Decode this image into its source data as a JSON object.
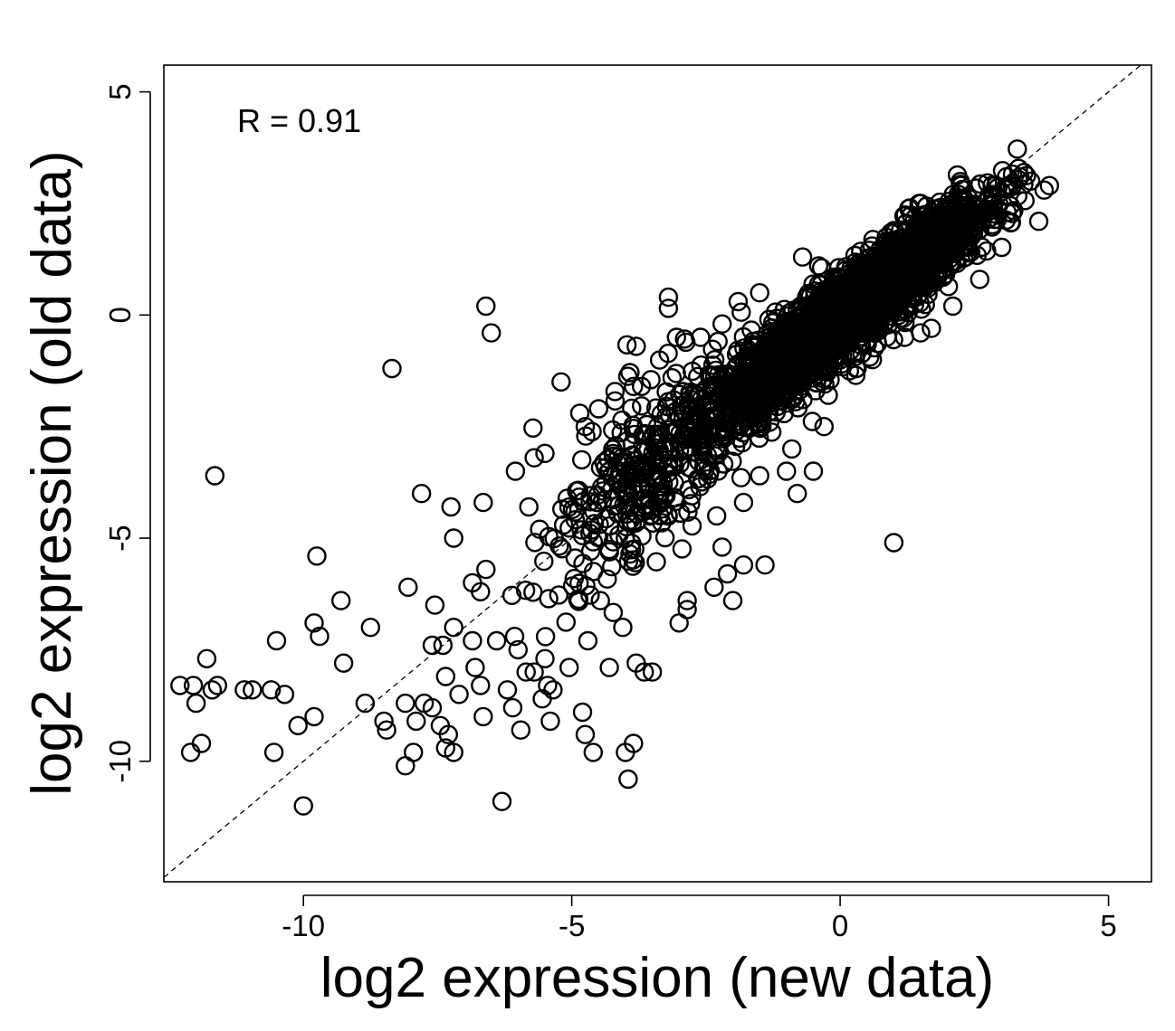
{
  "chart_data": {
    "type": "scatter",
    "title": "",
    "xlabel": "log2 expression (new data)",
    "ylabel": "log2 expression (old data)",
    "xlim": [
      -12.6,
      5.8
    ],
    "ylim": [
      -12.7,
      5.6
    ],
    "xticks": [
      -10,
      -5,
      0,
      5
    ],
    "yticks": [
      -10,
      -5,
      0,
      5
    ],
    "grid": false,
    "legend": "none",
    "annotation": "R = 0.91",
    "correlation": 0.91,
    "marker": "open-circle",
    "marker_color": "#000000",
    "reference_line": {
      "slope": 1,
      "intercept": 0,
      "style": "dashed"
    },
    "outliers": [
      {
        "x": -12.3,
        "y": -8.3
      },
      {
        "x": -12.1,
        "y": -9.8
      },
      {
        "x": -11.9,
        "y": -9.6
      },
      {
        "x": -12.0,
        "y": -8.7
      },
      {
        "x": -12.05,
        "y": -8.3
      },
      {
        "x": -11.7,
        "y": -8.4
      },
      {
        "x": -11.6,
        "y": -8.3
      },
      {
        "x": -11.8,
        "y": -7.7
      },
      {
        "x": -11.65,
        "y": -3.6
      },
      {
        "x": -11.1,
        "y": -8.4
      },
      {
        "x": -10.95,
        "y": -8.4
      },
      {
        "x": -10.6,
        "y": -8.4
      },
      {
        "x": -10.35,
        "y": -8.5
      },
      {
        "x": -10.55,
        "y": -9.8
      },
      {
        "x": -10.5,
        "y": -7.3
      },
      {
        "x": -10.1,
        "y": -9.2
      },
      {
        "x": -10.0,
        "y": -11.0
      },
      {
        "x": -9.8,
        "y": -9.0
      },
      {
        "x": -9.8,
        "y": -6.9
      },
      {
        "x": -9.7,
        "y": -7.2
      },
      {
        "x": -9.75,
        "y": -5.4
      },
      {
        "x": -9.3,
        "y": -6.4
      },
      {
        "x": -9.25,
        "y": -7.8
      },
      {
        "x": -8.75,
        "y": -7.0
      },
      {
        "x": -8.85,
        "y": -8.7
      },
      {
        "x": -8.5,
        "y": -9.1
      },
      {
        "x": -8.45,
        "y": -9.3
      },
      {
        "x": -8.35,
        "y": -1.2
      },
      {
        "x": -8.1,
        "y": -8.7
      },
      {
        "x": -8.1,
        "y": -10.1
      },
      {
        "x": -8.05,
        "y": -6.1
      },
      {
        "x": -7.95,
        "y": -9.8
      },
      {
        "x": -7.9,
        "y": -9.1
      },
      {
        "x": -7.75,
        "y": -8.7
      },
      {
        "x": -7.6,
        "y": -8.8
      },
      {
        "x": -7.45,
        "y": -9.2
      },
      {
        "x": -7.35,
        "y": -9.7
      },
      {
        "x": -7.2,
        "y": -9.8
      },
      {
        "x": -7.6,
        "y": -7.4
      },
      {
        "x": -7.4,
        "y": -7.4
      },
      {
        "x": -7.2,
        "y": -7.0
      },
      {
        "x": -7.1,
        "y": -8.5
      },
      {
        "x": -7.35,
        "y": -8.1
      },
      {
        "x": -7.3,
        "y": -9.4
      },
      {
        "x": -7.55,
        "y": -6.5
      },
      {
        "x": -7.8,
        "y": -4.0
      },
      {
        "x": -7.25,
        "y": -4.3
      },
      {
        "x": -7.2,
        "y": -5.0
      },
      {
        "x": -6.65,
        "y": -4.2
      },
      {
        "x": -6.6,
        "y": 0.2
      },
      {
        "x": -6.5,
        "y": -0.4
      },
      {
        "x": -6.85,
        "y": -7.3
      },
      {
        "x": -6.8,
        "y": -7.9
      },
      {
        "x": -6.7,
        "y": -8.3
      },
      {
        "x": -6.65,
        "y": -9.0
      },
      {
        "x": -6.85,
        "y": -6.0
      },
      {
        "x": -6.7,
        "y": -6.2
      },
      {
        "x": -6.6,
        "y": -5.7
      },
      {
        "x": -6.4,
        "y": -7.3
      },
      {
        "x": -6.3,
        "y": -10.9
      },
      {
        "x": -6.2,
        "y": -8.4
      },
      {
        "x": -6.1,
        "y": -8.8
      },
      {
        "x": -5.95,
        "y": -9.3
      },
      {
        "x": -6.0,
        "y": -7.5
      },
      {
        "x": -5.85,
        "y": -8.0
      },
      {
        "x": -5.7,
        "y": -8.0
      },
      {
        "x": -5.55,
        "y": -8.6
      },
      {
        "x": -5.45,
        "y": -8.3
      },
      {
        "x": -5.35,
        "y": -8.4
      },
      {
        "x": -5.4,
        "y": -9.1
      },
      {
        "x": -5.5,
        "y": -7.7
      },
      {
        "x": -5.05,
        "y": -7.9
      },
      {
        "x": -4.8,
        "y": -8.9
      },
      {
        "x": -4.75,
        "y": -9.4
      },
      {
        "x": -4.6,
        "y": -9.8
      },
      {
        "x": -4.7,
        "y": -7.3
      },
      {
        "x": -4.3,
        "y": -7.9
      },
      {
        "x": -4.0,
        "y": -9.8
      },
      {
        "x": -3.85,
        "y": -9.6
      },
      {
        "x": -3.95,
        "y": -10.4
      },
      {
        "x": -4.05,
        "y": -7.0
      },
      {
        "x": -3.8,
        "y": -7.8
      },
      {
        "x": -3.65,
        "y": -8.0
      },
      {
        "x": -3.5,
        "y": -8.0
      },
      {
        "x": -3.0,
        "y": -6.9
      },
      {
        "x": -2.85,
        "y": -6.6
      },
      {
        "x": -2.85,
        "y": -6.4
      },
      {
        "x": -2.35,
        "y": -6.1
      },
      {
        "x": -2.0,
        "y": -6.4
      },
      {
        "x": -1.8,
        "y": -5.6
      },
      {
        "x": -1.4,
        "y": -5.6
      },
      {
        "x": 1.0,
        "y": -5.1
      },
      {
        "x": -5.2,
        "y": -1.5
      },
      {
        "x": -4.85,
        "y": -2.2
      },
      {
        "x": -4.75,
        "y": -2.5
      },
      {
        "x": -4.5,
        "y": -2.1
      },
      {
        "x": -5.7,
        "y": -3.2
      },
      {
        "x": -5.5,
        "y": -3.1
      },
      {
        "x": -6.05,
        "y": -3.5
      },
      {
        "x": -5.8,
        "y": -4.3
      },
      {
        "x": -5.6,
        "y": -4.8
      },
      {
        "x": -3.2,
        "y": 0.4
      },
      {
        "x": -3.2,
        "y": 0.15
      },
      {
        "x": -3.05,
        "y": -0.5
      },
      {
        "x": -3.7,
        "y": -1.6
      },
      {
        "x": -3.85,
        "y": -1.6
      },
      {
        "x": -3.8,
        "y": -0.7
      },
      {
        "x": -3.4,
        "y": -2.5
      },
      {
        "x": -2.3,
        "y": -4.5
      },
      {
        "x": -2.2,
        "y": -5.2
      },
      {
        "x": -2.1,
        "y": -5.8
      },
      {
        "x": -1.8,
        "y": -4.2
      },
      {
        "x": -1.5,
        "y": -3.6
      },
      {
        "x": -1.0,
        "y": -3.5
      },
      {
        "x": -0.9,
        "y": -3.0
      },
      {
        "x": -0.5,
        "y": -3.5
      },
      {
        "x": -0.8,
        "y": -4.0
      },
      {
        "x": -0.3,
        "y": -2.5
      },
      {
        "x": 0.3,
        "y": -1.2
      },
      {
        "x": 0.6,
        "y": -1.0
      },
      {
        "x": 1.2,
        "y": -0.5
      },
      {
        "x": 1.5,
        "y": -0.4
      },
      {
        "x": 1.7,
        "y": -0.3
      },
      {
        "x": 2.1,
        "y": 0.2
      },
      {
        "x": 2.6,
        "y": 0.8
      },
      {
        "x": 3.7,
        "y": 2.1
      },
      {
        "x": 3.8,
        "y": 2.8
      },
      {
        "x": 3.9,
        "y": 2.9
      },
      {
        "x": 3.55,
        "y": 3.0
      },
      {
        "x": 3.35,
        "y": 3.1
      },
      {
        "x": 3.1,
        "y": 3.1
      },
      {
        "x": 2.9,
        "y": 2.9
      },
      {
        "x": 2.25,
        "y": 2.9
      },
      {
        "x": 1.5,
        "y": 2.5
      },
      {
        "x": 1.3,
        "y": 2.4
      },
      {
        "x": -0.7,
        "y": 1.3
      },
      {
        "x": -0.4,
        "y": 1.1
      },
      {
        "x": -1.5,
        "y": 0.5
      },
      {
        "x": -1.9,
        "y": 0.3
      },
      {
        "x": -2.2,
        "y": -0.2
      },
      {
        "x": -2.6,
        "y": -0.5
      }
    ],
    "clusters": [
      {
        "x_mean": 0.2,
        "x_sd": 1.25,
        "x_min": -3.4,
        "x_max": 3.5,
        "slope": 0.92,
        "intercept": -0.1,
        "scatter_sd": 0.45,
        "count": 2800
      },
      {
        "x_mean": -3.6,
        "x_sd": 0.9,
        "x_min": -6.4,
        "x_max": -1.8,
        "slope": 1.0,
        "intercept": 0.0,
        "scatter_sd": 1.0,
        "count": 330
      }
    ]
  }
}
